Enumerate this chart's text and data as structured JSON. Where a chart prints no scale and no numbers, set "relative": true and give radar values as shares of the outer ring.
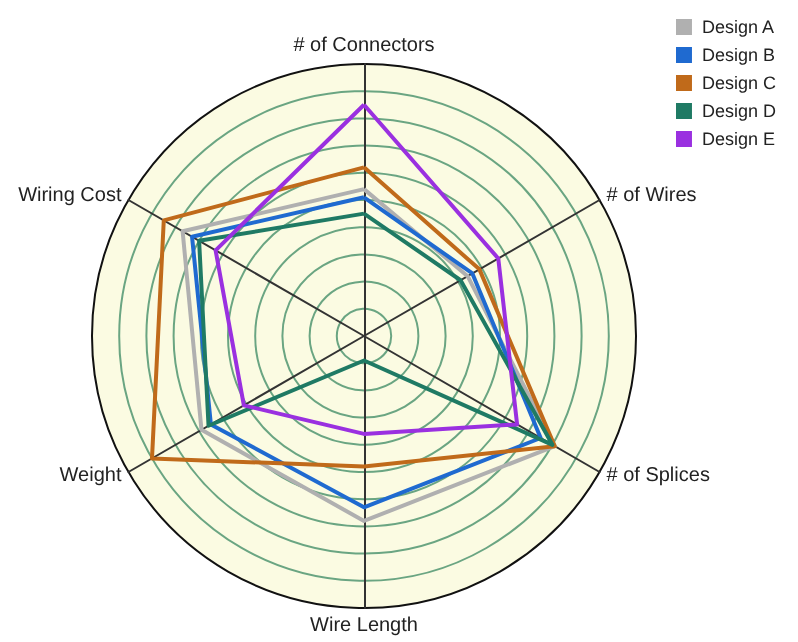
{
  "chart_data": {
    "type": "radar",
    "relative": true,
    "legend": "top right",
    "marker": "none",
    "line_style": "solid",
    "categories": [
      "# of Connectors",
      "# of Wires",
      "# of Splices",
      "Wire Length",
      "Weight",
      "Wiring Cost"
    ],
    "series": [
      {
        "name": "Design A",
        "color": "#b0b0b0",
        "values": [
          0.54,
          0.44,
          0.81,
          0.68,
          0.69,
          0.77
        ]
      },
      {
        "name": "Design B",
        "color": "#1f6ad0",
        "values": [
          0.51,
          0.46,
          0.75,
          0.63,
          0.65,
          0.73
        ]
      },
      {
        "name": "Design C",
        "color": "#c06a1a",
        "values": [
          0.62,
          0.49,
          0.81,
          0.48,
          0.9,
          0.85
        ]
      },
      {
        "name": "Design D",
        "color": "#1f7a64",
        "values": [
          0.45,
          0.41,
          0.8,
          0.09,
          0.66,
          0.7
        ]
      },
      {
        "name": "Design E",
        "color": "#9a30e0",
        "values": [
          0.85,
          0.57,
          0.65,
          0.36,
          0.51,
          0.63
        ]
      }
    ]
  }
}
